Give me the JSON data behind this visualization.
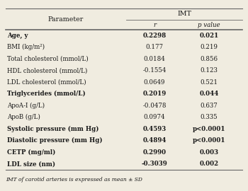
{
  "title": "IMT",
  "col_headers": [
    "r",
    "p value"
  ],
  "param_header": "Parameter",
  "rows": [
    {
      "param": "Age, y",
      "r": "0.2298",
      "p": "0.021",
      "bold": true
    },
    {
      "param": "BMI (kg/m²)",
      "r": "0.177",
      "p": "0.219",
      "bold": false
    },
    {
      "param": "Total cholesterol (mmol/L)",
      "r": "0.0184",
      "p": "0.856",
      "bold": false
    },
    {
      "param": "HDL cholesterol (mmol/L)",
      "r": "-0.1554",
      "p": "0.123",
      "bold": false
    },
    {
      "param": "LDL cholesterol (mmol/L)",
      "r": "0.0649",
      "p": "0.521",
      "bold": false
    },
    {
      "param": "Triglycerides (mmol/L)",
      "r": "0.2019",
      "p": "0.044",
      "bold": true
    },
    {
      "param": "ApoA-I (g/L)",
      "r": "-0.0478",
      "p": "0.637",
      "bold": false
    },
    {
      "param": "ApoB (g/L)",
      "r": "0.0974",
      "p": "0.335",
      "bold": false
    },
    {
      "param": "Systolic pressure (mm Hg)",
      "r": "0.4593",
      "p": "p<0.0001",
      "bold": true
    },
    {
      "param": "Diastolic pressure (mm Hg)",
      "r": "0.4894",
      "p": "p<0.0001",
      "bold": true
    },
    {
      "param": "CETP (mg/ml)",
      "r": "0.2990",
      "p": "0.003",
      "bold": true
    },
    {
      "param": "LDL size (nm)",
      "r": "-0.3039",
      "p": "0.002",
      "bold": true
    }
  ],
  "footnote": "IMT of carotid arteries is expressed as mean ± SD",
  "bg_color": "#f0ece0",
  "line_color": "#666666",
  "text_color": "#1a1a1a",
  "font_size": 6.2,
  "header_font_size": 6.8
}
